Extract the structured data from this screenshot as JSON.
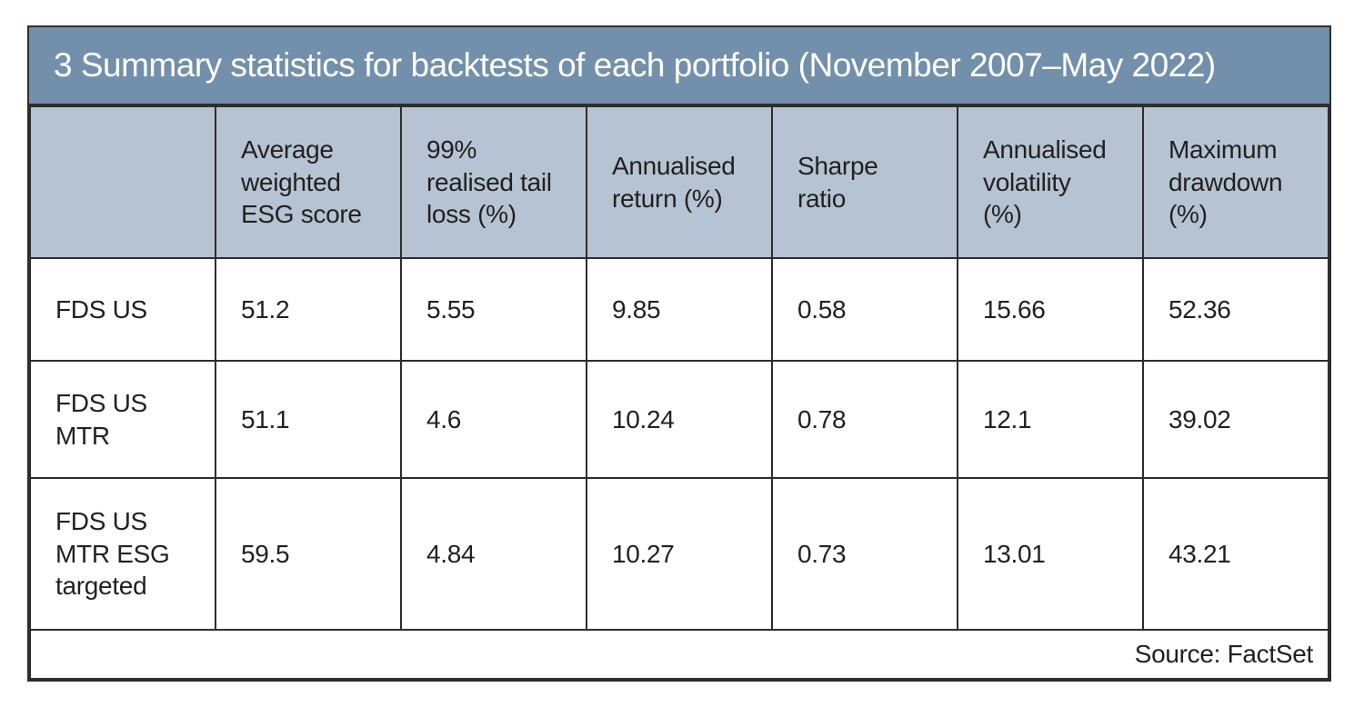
{
  "figure": {
    "title": "3 Summary statistics for backtests of each portfolio (November 2007–May 2022)",
    "source": "Source: FactSet"
  },
  "table": {
    "headers": [
      "",
      "Average\nweighted\nESG score",
      "99%\nrealised tail\nloss (%)",
      "Annualised\nreturn (%)",
      "Sharpe\nratio",
      "Annualised\nvolatility\n(%)",
      "Maximum\ndrawdown\n(%)"
    ],
    "rows": [
      {
        "label": "FDS US",
        "values": [
          "51.2",
          "5.55",
          "9.85",
          "0.58",
          "15.66",
          "52.36"
        ]
      },
      {
        "label": "FDS US\nMTR",
        "values": [
          "51.1",
          "4.6",
          "10.24",
          "0.78",
          "12.1",
          "39.02"
        ]
      },
      {
        "label": "FDS US\nMTR ESG\ntargeted",
        "values": [
          "59.5",
          "4.84",
          "10.27",
          "0.73",
          "13.01",
          "43.21"
        ]
      }
    ]
  },
  "colors": {
    "title_bg": "#7290ab",
    "header_bg": "#b5c3d2",
    "border": "#2e2d2c",
    "text": "#231f20",
    "title_text": "#ffffff",
    "page_bg": "#ffffff"
  }
}
